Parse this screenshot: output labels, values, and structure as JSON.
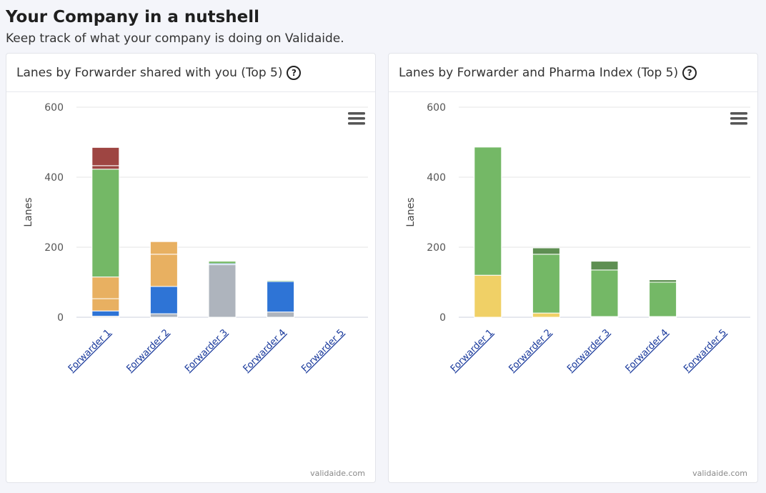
{
  "header": {
    "title": "Your Company in a nutshell",
    "subtitle": "Keep track of what your company is doing on Validaide."
  },
  "cards": [
    {
      "title": "Lanes by Forwarder shared with you (Top 5)",
      "help_icon": "?",
      "menu_icon": "hamburger-menu-icon",
      "credit": "validaide.com",
      "chart_data": {
        "type": "bar",
        "stacked": true,
        "categories": [
          "Forwarder 1",
          "Forwarder 2",
          "Forwarder 3",
          "Forwarder 4",
          "Forwarder 5"
        ],
        "ylabel": "Lanes",
        "ylim": [
          0,
          600
        ],
        "yticks": [
          0,
          200,
          400,
          600
        ],
        "grid": true,
        "series": [
          {
            "color": "#aeb4bd",
            "values": [
              3,
              10,
              150,
              15,
              0
            ]
          },
          {
            "color": "#2e74d6",
            "values": [
              15,
              78,
              3,
              87,
              0
            ]
          },
          {
            "color": "#e8b061",
            "values": [
              35,
              92,
              0,
              0,
              0
            ]
          },
          {
            "color": "#e8b061",
            "values": [
              62,
              36,
              0,
              0,
              0
            ]
          },
          {
            "color": "#74b866",
            "values": [
              308,
              0,
              7,
              3,
              0
            ]
          },
          {
            "color": "#9e4542",
            "values": [
              10,
              0,
              0,
              0,
              0
            ]
          },
          {
            "color": "#9e4542",
            "values": [
              52,
              0,
              0,
              0,
              0
            ]
          }
        ]
      }
    },
    {
      "title": "Lanes by Forwarder and Pharma Index (Top 5)",
      "help_icon": "?",
      "menu_icon": "hamburger-menu-icon",
      "credit": "validaide.com",
      "chart_data": {
        "type": "bar",
        "stacked": true,
        "categories": [
          "Forwarder 1",
          "Forwarder 2",
          "Forwarder 3",
          "Forwarder 4",
          "Forwarder 5"
        ],
        "ylabel": "Lanes",
        "ylim": [
          0,
          600
        ],
        "yticks": [
          0,
          200,
          400,
          600
        ],
        "grid": true,
        "series": [
          {
            "color": "#f0d066",
            "values": [
              120,
              12,
              2,
              2,
              0
            ]
          },
          {
            "color": "#74b866",
            "values": [
              366,
              168,
              133,
              98,
              0
            ]
          },
          {
            "color": "#5e8f52",
            "values": [
              0,
              18,
              25,
              7,
              0
            ]
          }
        ]
      }
    }
  ]
}
